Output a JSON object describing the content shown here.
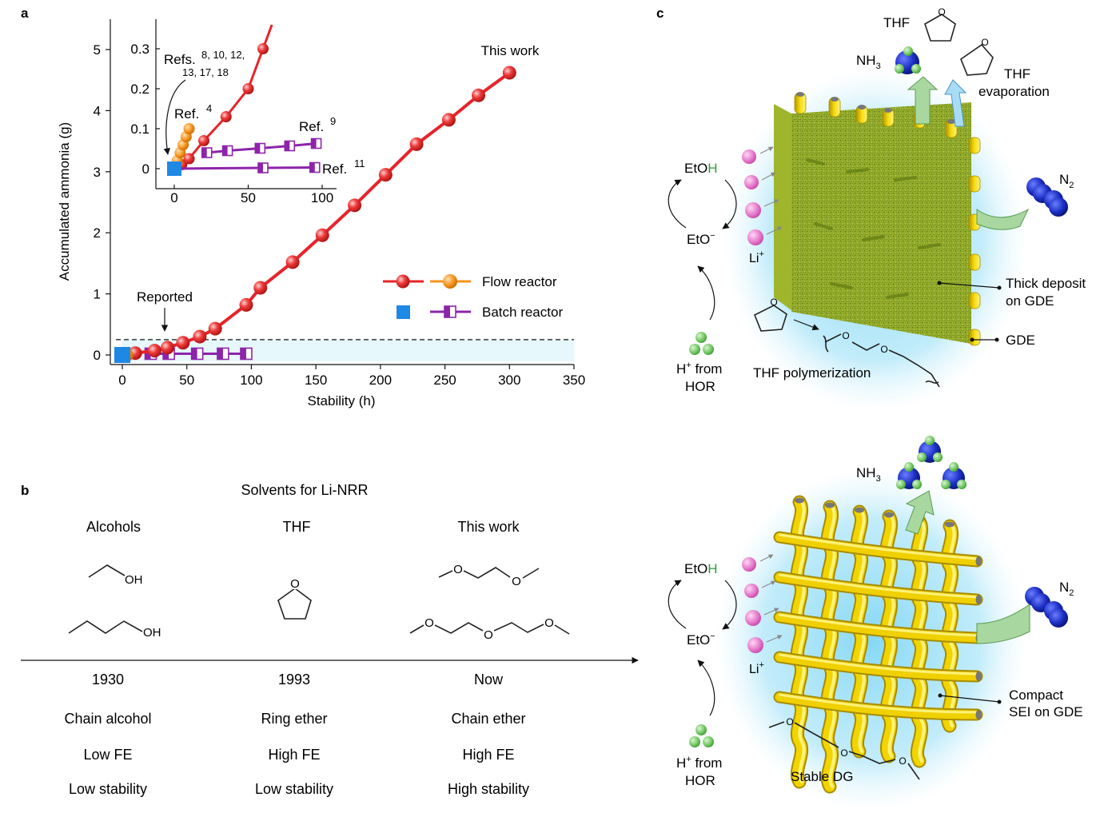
{
  "panels": {
    "a": "a",
    "b": "b",
    "c": "c"
  },
  "chart_data": {
    "type": "line",
    "xlabel": "Stability (h)",
    "ylabel": "Accumulated ammonia (g)",
    "xlim": [
      0,
      350
    ],
    "ylim": [
      0,
      5.5
    ],
    "xticks": [
      0,
      50,
      100,
      150,
      200,
      250,
      300,
      350
    ],
    "yticks": [
      0,
      1,
      2,
      3,
      4,
      5
    ],
    "reported_line_y": 0.25,
    "legend": {
      "flow": "Flow reactor",
      "batch": "Batch reactor"
    },
    "annotations": {
      "this_work": "This work",
      "reported": "Reported"
    },
    "series": [
      {
        "name": "This work",
        "color": "#e8232a",
        "x": [
          0,
          3,
          10,
          25,
          35,
          47,
          60,
          72,
          96,
          107,
          132,
          155,
          180,
          204,
          228,
          253,
          276,
          300
        ],
        "y": [
          0,
          0.01,
          0.03,
          0.07,
          0.12,
          0.2,
          0.3,
          0.43,
          0.82,
          1.1,
          1.52,
          1.96,
          2.45,
          2.95,
          3.45,
          3.85,
          4.25,
          4.62
        ]
      },
      {
        "name": "Ref. 4",
        "color": "#f7931e",
        "x": [
          0,
          2,
          4,
          6,
          8,
          10
        ],
        "y": [
          0,
          0.02,
          0.04,
          0.06,
          0.08,
          0.1
        ]
      },
      {
        "name": "Ref. 9",
        "color": "#8e24aa",
        "x": [
          22,
          36,
          58,
          78,
          96
        ],
        "y": [
          0.04,
          0.045,
          0.051,
          0.057,
          0.063
        ]
      },
      {
        "name": "Ref. 11",
        "color": "#8e24aa",
        "x": [
          0,
          60,
          95
        ],
        "y": [
          0,
          0.002,
          0.003
        ]
      }
    ],
    "batch_start": {
      "x": 0,
      "y": 0,
      "color": "#1e88e5"
    },
    "inset": {
      "xlim": [
        0,
        110
      ],
      "ylim": [
        -0.03,
        0.33
      ],
      "xticks": [
        0,
        50,
        100
      ],
      "yticks": [
        0,
        0.1,
        0.2,
        0.3
      ],
      "ytick_labels": [
        "0",
        "0.1",
        "0.2",
        "0.3"
      ],
      "refs_main": {
        "prefix": "Refs.",
        "sup1": "8, 10, 12,",
        "sup2": "13, 17, 18"
      },
      "ref4": {
        "prefix": "Ref.",
        "sup": "4"
      },
      "ref9": {
        "prefix": "Ref.",
        "sup": "9"
      },
      "ref11": {
        "prefix": "Ref.",
        "sup": "11"
      },
      "refs_series": {
        "x": [
          0,
          5,
          10,
          20,
          35,
          50,
          60
        ],
        "y": [
          0,
          0.01,
          0.025,
          0.07,
          0.13,
          0.2,
          0.3
        ]
      }
    }
  },
  "panel_b": {
    "title": "Solvents for Li-NRR",
    "columns": [
      {
        "header": "Alcohols",
        "year": "1930",
        "type": "Chain alcohol",
        "fe": "Low FE",
        "stability": "Low stability",
        "oh1": "OH",
        "oh2": "OH"
      },
      {
        "header": "THF",
        "year": "1993",
        "type": "Ring ether",
        "fe": "High FE",
        "stability": "Low stability",
        "o": "O"
      },
      {
        "header": "This work",
        "year": "Now",
        "type": "Chain ether",
        "fe": "High FE",
        "stability": "High stability",
        "o": "O"
      }
    ]
  },
  "panel_c": {
    "top": {
      "thf": "THF",
      "nh3": "NH",
      "sub3": "3",
      "thf_evap1": "THF",
      "thf_evap2": "evaporation",
      "n2": "N",
      "sub2": "2",
      "etoh_a": "EtO",
      "etoh_b": "H",
      "eto": "EtO",
      "li": "Li",
      "h_a": "H",
      "h_b": " from",
      "hor": "HOR",
      "plus": "+",
      "minus": "−",
      "deposit1": "Thick deposit",
      "deposit2": "on GDE",
      "gde": "GDE",
      "poly": "THF polymerization",
      "o": "O"
    },
    "bottom": {
      "nh3": "NH",
      "sub3": "3",
      "n2": "N",
      "sub2": "2",
      "etoh_a": "EtO",
      "etoh_b": "H",
      "eto": "EtO",
      "li": "Li",
      "h_a": "H",
      "h_b": " from",
      "hor": "HOR",
      "plus": "+",
      "minus": "−",
      "sei1": "Compact",
      "sei2": "SEI on GDE",
      "dg": "Stable DG",
      "o": "O"
    }
  },
  "colors": {
    "red": "#e8232a",
    "orange": "#f7931e",
    "purple": "#8e24aa",
    "blue": "#1e88e5",
    "green": "#2e9e3a",
    "pink": "#e36fc7"
  }
}
